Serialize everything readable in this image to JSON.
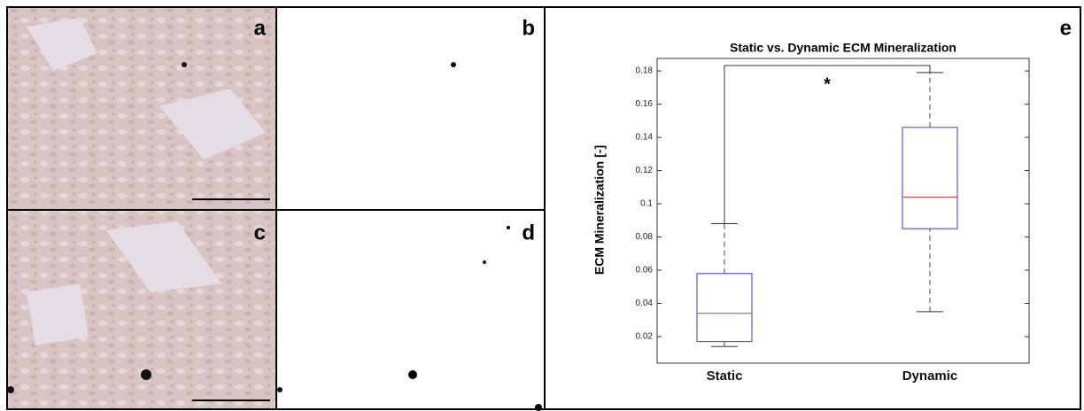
{
  "panels": [
    {
      "label": "a"
    },
    {
      "label": "b"
    },
    {
      "label": "c"
    },
    {
      "label": "d"
    }
  ],
  "chart_data": {
    "type": "box",
    "panel_label": "e",
    "title": "Static vs. Dynamic ECM Mineralization",
    "y_label": "ECM Mineralization [-]",
    "categories": [
      "Static",
      "Dynamic"
    ],
    "boxes": [
      {
        "min": 0.014,
        "q1": 0.017,
        "median": 0.034,
        "q3": 0.058,
        "max": 0.088
      },
      {
        "min": 0.035,
        "q1": 0.085,
        "median": 0.104,
        "q3": 0.146,
        "max": 0.179
      }
    ],
    "box_color": "#3a3ad0",
    "median_color": "#e03a3a",
    "annotation": "*",
    "ylim": [
      0.004,
      0.1875
    ],
    "yticks": [
      0.02,
      0.04,
      0.06,
      0.08,
      0.1,
      0.12,
      0.14,
      0.16,
      0.18
    ]
  }
}
